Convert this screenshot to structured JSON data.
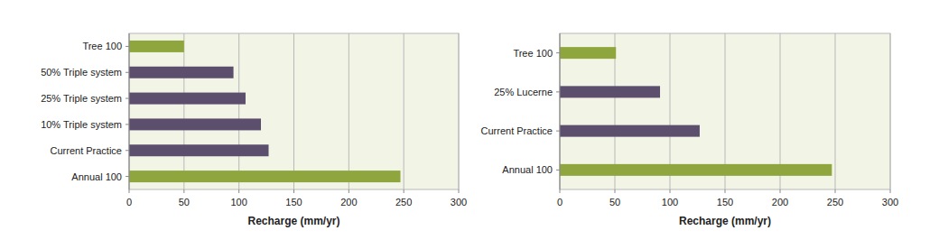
{
  "chart_data": [
    {
      "type": "bar",
      "orientation": "horizontal",
      "grid": true,
      "categories": [
        "Tree 100",
        "50% Triple system",
        "25% Triple system",
        "10% Triple system",
        "Current Practice",
        "Annual 100"
      ],
      "values": [
        50,
        95,
        106,
        120,
        127,
        247
      ],
      "colors": [
        "#8fa63f",
        "#5c4f6e",
        "#5c4f6e",
        "#5c4f6e",
        "#5c4f6e",
        "#8fa63f"
      ],
      "xlabel": "Recharge (mm/yr)",
      "xlim": [
        0,
        300
      ],
      "xticks": [
        0,
        50,
        100,
        150,
        200,
        250,
        300
      ]
    },
    {
      "type": "bar",
      "orientation": "horizontal",
      "grid": true,
      "categories": [
        "Tree 100",
        "25% Lucerne",
        "Current Practice",
        "Annual 100"
      ],
      "values": [
        51,
        91,
        127,
        247
      ],
      "colors": [
        "#8fa63f",
        "#5c4f6e",
        "#5c4f6e",
        "#8fa63f"
      ],
      "xlabel": "Recharge (mm/yr)",
      "xlim": [
        0,
        300
      ],
      "xticks": [
        0,
        50,
        100,
        150,
        200,
        250,
        300
      ]
    }
  ]
}
